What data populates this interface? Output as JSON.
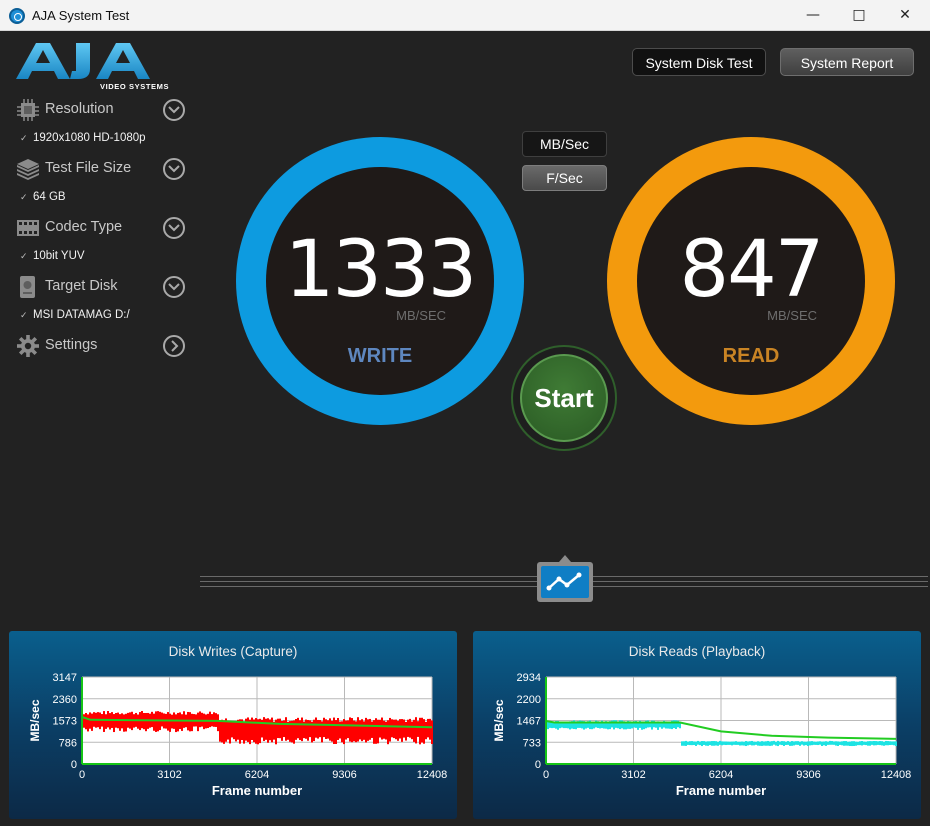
{
  "window": {
    "title": "AJA System Test"
  },
  "logo": {
    "subtitle": "VIDEO SYSTEMS"
  },
  "sidebar": {
    "items": [
      {
        "label": "Resolution",
        "value": "1920x1080 HD-1080p"
      },
      {
        "label": "Test File Size",
        "value": "64 GB"
      },
      {
        "label": "Codec Type",
        "value": "10bit YUV"
      },
      {
        "label": "Target Disk",
        "value": "MSI DATAMAG D:/"
      },
      {
        "label": "Settings"
      }
    ]
  },
  "header": {
    "disk_test_label": "System Disk Test",
    "report_label": "System Report"
  },
  "units": {
    "mb_label": "MB/Sec",
    "fs_label": "F/Sec"
  },
  "write": {
    "value": "1333",
    "unit": "MB/SEC",
    "label": "WRITE",
    "color": "#0d9be0"
  },
  "read": {
    "value": "847",
    "unit": "MB/SEC",
    "label": "READ",
    "color": "#f39a0d"
  },
  "start_label": "Start",
  "chart_data": [
    {
      "type": "line",
      "title": "Disk Writes (Capture)",
      "xlabel": "Frame number",
      "ylabel": "MB/sec",
      "xlim": [
        0,
        12408
      ],
      "ylim": [
        0,
        3147
      ],
      "xticks": [
        "0",
        "3102",
        "6204",
        "9306",
        "12408"
      ],
      "yticks": [
        "0",
        "786",
        "1573",
        "2360",
        "3147"
      ],
      "series": [
        {
          "style": "noisy-fill",
          "color": "#ff0000",
          "points": [
            [
              0,
              1573
            ],
            [
              4800,
              1573
            ],
            [
              4900,
              1250
            ],
            [
              12408,
              1250
            ]
          ],
          "spread": [
            [
              0,
              350
            ],
            [
              4800,
              350
            ],
            [
              4900,
              450
            ],
            [
              12408,
              450
            ]
          ]
        },
        {
          "style": "line",
          "color": "#22cc22",
          "points": [
            [
              0,
              1700
            ],
            [
              300,
              1600
            ],
            [
              4800,
              1560
            ],
            [
              7000,
              1450
            ],
            [
              9300,
              1400
            ],
            [
              12408,
              1330
            ]
          ]
        }
      ]
    },
    {
      "type": "line",
      "title": "Disk Reads (Playback)",
      "xlabel": "Frame number",
      "ylabel": "MB/sec",
      "xlim": [
        0,
        12408
      ],
      "ylim": [
        0,
        2934
      ],
      "xticks": [
        "0",
        "3102",
        "6204",
        "9306",
        "12408"
      ],
      "yticks": [
        "0",
        "733",
        "1467",
        "2200",
        "2934"
      ],
      "series": [
        {
          "style": "noisy-fill",
          "color": "#1de3e3",
          "points": [
            [
              0,
              1330
            ],
            [
              4750,
              1330
            ],
            [
              4800,
              700
            ],
            [
              12408,
              700
            ]
          ],
          "spread": [
            [
              0,
              150
            ],
            [
              4750,
              150
            ],
            [
              4800,
              80
            ],
            [
              12408,
              80
            ]
          ]
        },
        {
          "style": "line",
          "color": "#22cc22",
          "points": [
            [
              0,
              1450
            ],
            [
              300,
              1400
            ],
            [
              4750,
              1400
            ],
            [
              6200,
              1100
            ],
            [
              8000,
              950
            ],
            [
              10000,
              890
            ],
            [
              12408,
              847
            ]
          ]
        }
      ]
    }
  ]
}
